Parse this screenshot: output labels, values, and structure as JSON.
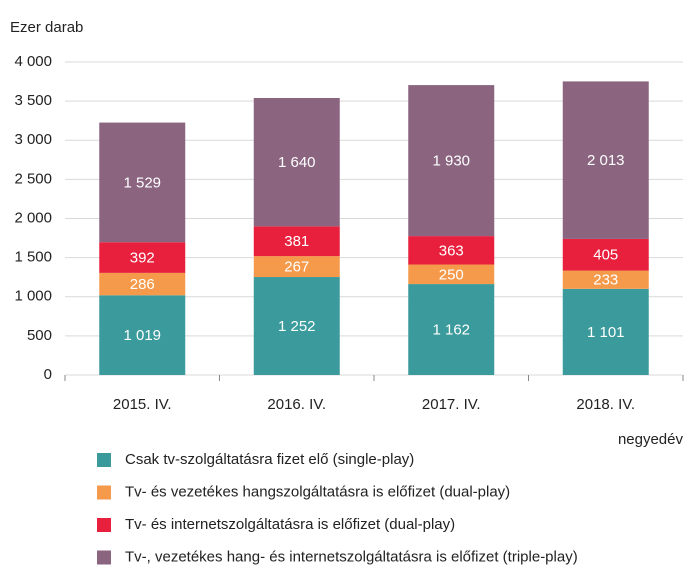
{
  "chart_data": {
    "type": "stacked_bar",
    "y_axis_label": "Ezer darab",
    "x_axis_label": "negyedév",
    "categories": [
      "2015. IV.",
      "2016. IV.",
      "2017. IV.",
      "2018. IV."
    ],
    "series": [
      {
        "name": "Csak tv-szolgáltatásra fizet elő (single-play)",
        "color": "#3a9a9c",
        "values": [
          1019,
          1252,
          1162,
          1101
        ],
        "value_labels": [
          "1 019",
          "1 252",
          "1 162",
          "1 101"
        ]
      },
      {
        "name": "Tv- és vezetékes hangszolgáltatásra is előfizet (dual-play)",
        "color": "#f59a4b",
        "values": [
          286,
          267,
          250,
          233
        ]
      },
      {
        "name": "Tv- és internetszolgáltatásra is előfizet (dual-play)",
        "color": "#e8203d",
        "values": [
          392,
          381,
          363,
          405
        ]
      },
      {
        "name": "Tv-, vezetékes hang- és internetszolgáltatásra is előfizet (triple-play)",
        "color": "#8b6580",
        "values": [
          1529,
          1640,
          1930,
          2013
        ],
        "value_labels": [
          "1 529",
          "1 640",
          "1 930",
          "2 013"
        ]
      }
    ],
    "ylim": [
      0,
      4000
    ],
    "yticks": [
      0,
      500,
      {
        "value": 1000,
        "label": "1 000"
      },
      {
        "value": 1500,
        "label": "1 500"
      },
      {
        "value": 2000,
        "label": "2 000"
      },
      {
        "value": 2500,
        "label": "2 500"
      },
      {
        "value": 3000,
        "label": "3 000"
      },
      {
        "value": 3500,
        "label": "3 500"
      },
      {
        "value": 4000,
        "label": "4 000"
      }
    ],
    "grid": true
  }
}
